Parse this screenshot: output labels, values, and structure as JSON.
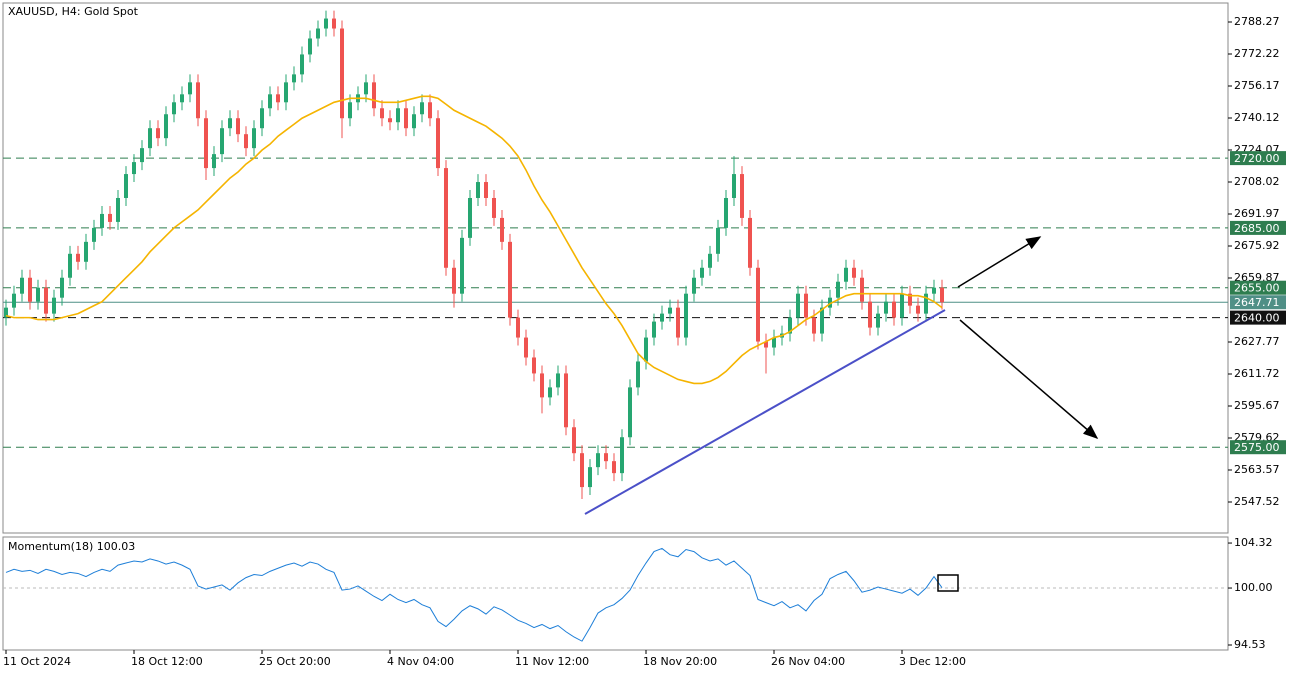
{
  "chart_data": [
    {
      "type": "candlestick",
      "title": "XAUUSD, H4:  Gold Spot",
      "categories": [
        "11 Oct 2024",
        null,
        null,
        null,
        null,
        null,
        null,
        null,
        null,
        null,
        null,
        null,
        null,
        null,
        null,
        null,
        "18 Oct 12:00",
        null,
        null,
        null,
        null,
        null,
        null,
        null,
        null,
        null,
        null,
        null,
        null,
        null,
        null,
        null,
        "25 Oct 20:00",
        null,
        null,
        null,
        null,
        null,
        null,
        null,
        null,
        null,
        null,
        null,
        null,
        null,
        null,
        null,
        "4 Nov 04:00",
        null,
        null,
        null,
        null,
        null,
        null,
        null,
        null,
        null,
        null,
        null,
        null,
        null,
        null,
        null,
        "11 Nov 12:00",
        null,
        null,
        null,
        null,
        null,
        null,
        null,
        null,
        null,
        null,
        null,
        null,
        null,
        null,
        null,
        "18 Nov 20:00",
        null,
        null,
        null,
        null,
        null,
        null,
        null,
        null,
        null,
        null,
        null,
        null,
        null,
        null,
        null,
        "26 Nov 04:00",
        null,
        null,
        null,
        null,
        null,
        null,
        null,
        null,
        null,
        null,
        null,
        null,
        null,
        null,
        null,
        "3 Dec 12:00",
        null,
        null,
        null,
        null,
        null
      ],
      "open": [
        2640,
        2645,
        2652,
        2660,
        2648,
        2655,
        2642,
        2650,
        2660,
        2672,
        2668,
        2678,
        2685,
        2692,
        2688,
        2700,
        2712,
        2718,
        2725,
        2735,
        2730,
        2742,
        2748,
        2752,
        2758,
        2740,
        2715,
        2722,
        2735,
        2740,
        2732,
        2725,
        2735,
        2745,
        2752,
        2748,
        2758,
        2762,
        2772,
        2780,
        2785,
        2790,
        2785,
        2740,
        2748,
        2752,
        2758,
        2745,
        2740,
        2738,
        2745,
        2735,
        2742,
        2748,
        2740,
        2715,
        2665,
        2652,
        2680,
        2700,
        2708,
        2700,
        2690,
        2678,
        2640,
        2630,
        2620,
        2612,
        2600,
        2605,
        2612,
        2585,
        2572,
        2555,
        2565,
        2572,
        2568,
        2562,
        2580,
        2605,
        2618,
        2630,
        2638,
        2642,
        2645,
        2630,
        2652,
        2660,
        2665,
        2672,
        2685,
        2700,
        2712,
        2690,
        2665,
        2628,
        2625,
        2630,
        2632,
        2640,
        2652,
        2640,
        2632,
        2645,
        2650,
        2658,
        2665,
        2660,
        2648,
        2635,
        2642,
        2648,
        2640,
        2652,
        2646,
        2642,
        2652,
        2655
      ],
      "high": [
        2649,
        2656,
        2664,
        2664,
        2659,
        2659,
        2654,
        2664,
        2676,
        2676,
        2682,
        2689,
        2696,
        2696,
        2704,
        2716,
        2722,
        2729,
        2739,
        2739,
        2746,
        2752,
        2756,
        2762,
        2762,
        2744,
        2726,
        2739,
        2744,
        2744,
        2736,
        2739,
        2749,
        2756,
        2756,
        2762,
        2766,
        2776,
        2784,
        2789,
        2794,
        2794,
        2789,
        2752,
        2756,
        2762,
        2762,
        2749,
        2744,
        2749,
        2749,
        2746,
        2752,
        2752,
        2744,
        2719,
        2669,
        2684,
        2704,
        2712,
        2712,
        2704,
        2694,
        2682,
        2644,
        2634,
        2624,
        2616,
        2609,
        2616,
        2616,
        2589,
        2576,
        2569,
        2576,
        2576,
        2572,
        2584,
        2609,
        2622,
        2634,
        2642,
        2646,
        2649,
        2649,
        2656,
        2664,
        2669,
        2676,
        2689,
        2704,
        2721,
        2716,
        2694,
        2669,
        2632,
        2634,
        2636,
        2644,
        2656,
        2656,
        2644,
        2649,
        2654,
        2662,
        2669,
        2669,
        2664,
        2652,
        2646,
        2652,
        2652,
        2656,
        2656,
        2650,
        2656,
        2659,
        2659
      ],
      "low": [
        2636,
        2641,
        2648,
        2644,
        2644,
        2638,
        2638,
        2646,
        2656,
        2664,
        2664,
        2674,
        2681,
        2684,
        2684,
        2696,
        2708,
        2714,
        2721,
        2726,
        2726,
        2738,
        2744,
        2748,
        2736,
        2709,
        2711,
        2718,
        2731,
        2728,
        2721,
        2721,
        2731,
        2741,
        2744,
        2744,
        2754,
        2758,
        2768,
        2776,
        2781,
        2781,
        2730,
        2736,
        2744,
        2748,
        2741,
        2736,
        2734,
        2734,
        2731,
        2731,
        2738,
        2736,
        2711,
        2661,
        2645,
        2648,
        2676,
        2696,
        2696,
        2686,
        2674,
        2636,
        2626,
        2616,
        2608,
        2592,
        2596,
        2601,
        2581,
        2568,
        2549,
        2551,
        2561,
        2564,
        2558,
        2558,
        2576,
        2601,
        2614,
        2626,
        2634,
        2638,
        2626,
        2626,
        2648,
        2656,
        2661,
        2668,
        2681,
        2696,
        2686,
        2661,
        2624,
        2612,
        2621,
        2626,
        2628,
        2636,
        2636,
        2628,
        2628,
        2641,
        2646,
        2654,
        2656,
        2644,
        2631,
        2631,
        2638,
        2636,
        2636,
        2642,
        2638,
        2638,
        2648,
        2644
      ],
      "close": [
        2645,
        2652,
        2660,
        2648,
        2655,
        2642,
        2650,
        2660,
        2672,
        2668,
        2678,
        2685,
        2692,
        2688,
        2700,
        2712,
        2718,
        2725,
        2735,
        2730,
        2742,
        2748,
        2752,
        2758,
        2740,
        2715,
        2722,
        2735,
        2740,
        2732,
        2725,
        2735,
        2745,
        2752,
        2748,
        2758,
        2762,
        2772,
        2780,
        2785,
        2790,
        2785,
        2740,
        2748,
        2752,
        2758,
        2745,
        2740,
        2738,
        2745,
        2735,
        2742,
        2748,
        2740,
        2715,
        2665,
        2652,
        2680,
        2700,
        2708,
        2700,
        2690,
        2678,
        2640,
        2630,
        2620,
        2612,
        2600,
        2605,
        2612,
        2585,
        2572,
        2555,
        2565,
        2572,
        2568,
        2562,
        2580,
        2605,
        2618,
        2630,
        2638,
        2642,
        2645,
        2630,
        2652,
        2660,
        2665,
        2672,
        2685,
        2700,
        2712,
        2690,
        2665,
        2628,
        2625,
        2630,
        2632,
        2640,
        2652,
        2640,
        2632,
        2645,
        2650,
        2658,
        2665,
        2660,
        2648,
        2635,
        2642,
        2648,
        2640,
        2652,
        2646,
        2642,
        2652,
        2655,
        2647.71
      ],
      "up_color": "#26a671",
      "down_color": "#ef5350",
      "ma": {
        "color": "#f5b400",
        "values": [
          2641,
          2640,
          2640,
          2640,
          2639,
          2639,
          2639,
          2640,
          2641,
          2642,
          2644,
          2646,
          2648,
          2652,
          2656,
          2660,
          2664,
          2668,
          2673,
          2677,
          2681,
          2685,
          2688,
          2691,
          2694,
          2698,
          2702,
          2706,
          2710,
          2713,
          2717,
          2720,
          2724,
          2727,
          2731,
          2734,
          2737,
          2740,
          2742,
          2744,
          2746,
          2748,
          2749,
          2750,
          2750,
          2750,
          2749,
          2748,
          2748,
          2748,
          2749,
          2750,
          2751,
          2751,
          2750,
          2747,
          2744,
          2742,
          2740,
          2738,
          2736,
          2733,
          2730,
          2726,
          2721,
          2714,
          2706,
          2699,
          2693,
          2686,
          2679,
          2672,
          2665,
          2659,
          2653,
          2647,
          2642,
          2636,
          2629,
          2622,
          2618,
          2615,
          2613,
          2611,
          2609,
          2608,
          2607,
          2607,
          2608,
          2610,
          2613,
          2617,
          2621,
          2624,
          2626,
          2628,
          2630,
          2631,
          2633,
          2636,
          2639,
          2641,
          2644,
          2647,
          2649,
          2651,
          2652,
          2652,
          2652,
          2652,
          2652,
          2652,
          2652,
          2651,
          2651,
          2650,
          2648,
          2645
        ]
      },
      "ylim": [
        2531.97,
        2797.8
      ],
      "yticks": [
        2788.27,
        2772.22,
        2756.17,
        2740.12,
        2724.07,
        2708.02,
        2691.97,
        2675.92,
        2659.87,
        2627.77,
        2611.72,
        2595.67,
        2579.62,
        2563.57,
        2547.52
      ],
      "levels": [
        {
          "value": 2720,
          "label": "2720.00",
          "color": "#2e7d4f",
          "style": "dashed"
        },
        {
          "value": 2685,
          "label": "2685.00",
          "color": "#2e7d4f",
          "style": "dashed"
        },
        {
          "value": 2655,
          "label": "2655.00",
          "color": "#2e7d4f",
          "style": "dashed"
        },
        {
          "value": 2647.71,
          "label": "2647.71",
          "color": "#4f8f86",
          "style": "solid"
        },
        {
          "value": 2640,
          "label": "2640.00",
          "color": "#111111",
          "style": "dashed"
        },
        {
          "value": 2575,
          "label": "2575.00",
          "color": "#2e7d4f",
          "style": "dashed"
        }
      ]
    },
    {
      "type": "line",
      "title": "Momentum(18) 100.03",
      "color": "#1e7fd8",
      "values": [
        101.5,
        101.8,
        101.6,
        101.7,
        101.4,
        101.8,
        101.6,
        101.3,
        101.5,
        101.4,
        101.1,
        101.5,
        101.8,
        101.6,
        102.2,
        102.4,
        102.6,
        102.5,
        102.8,
        102.6,
        102.3,
        102.5,
        102.2,
        101.8,
        100.2,
        99.9,
        100.1,
        100.3,
        99.8,
        100.5,
        101.0,
        101.3,
        101.2,
        101.6,
        101.9,
        102.2,
        102.4,
        102.1,
        102.5,
        102.3,
        101.8,
        101.5,
        99.8,
        99.9,
        100.2,
        99.7,
        99.2,
        98.8,
        99.4,
        98.9,
        98.6,
        98.9,
        98.4,
        98.1,
        96.8,
        96.3,
        97.0,
        97.8,
        98.3,
        98.0,
        97.5,
        98.2,
        97.9,
        97.4,
        96.9,
        96.6,
        96.2,
        96.5,
        96.1,
        96.4,
        95.8,
        95.3,
        94.9,
        96.2,
        97.6,
        98.1,
        98.4,
        99.0,
        99.8,
        101.2,
        102.4,
        103.5,
        103.8,
        103.2,
        103.0,
        103.7,
        103.5,
        102.9,
        102.6,
        102.8,
        102.2,
        102.6,
        101.9,
        101.2,
        98.9,
        98.6,
        98.3,
        98.7,
        98.1,
        98.4,
        97.8,
        98.8,
        99.4,
        100.9,
        101.3,
        101.6,
        100.7,
        99.6,
        99.8,
        100.1,
        99.9,
        99.7,
        99.5,
        99.9,
        99.3,
        100.0,
        101.1,
        100.03
      ],
      "ylim": [
        94.05,
        104.9
      ],
      "yticks": [
        104.32,
        {
          "value": 100,
          "label": "100.00"
        },
        94.53
      ],
      "hline": 100
    }
  ]
}
